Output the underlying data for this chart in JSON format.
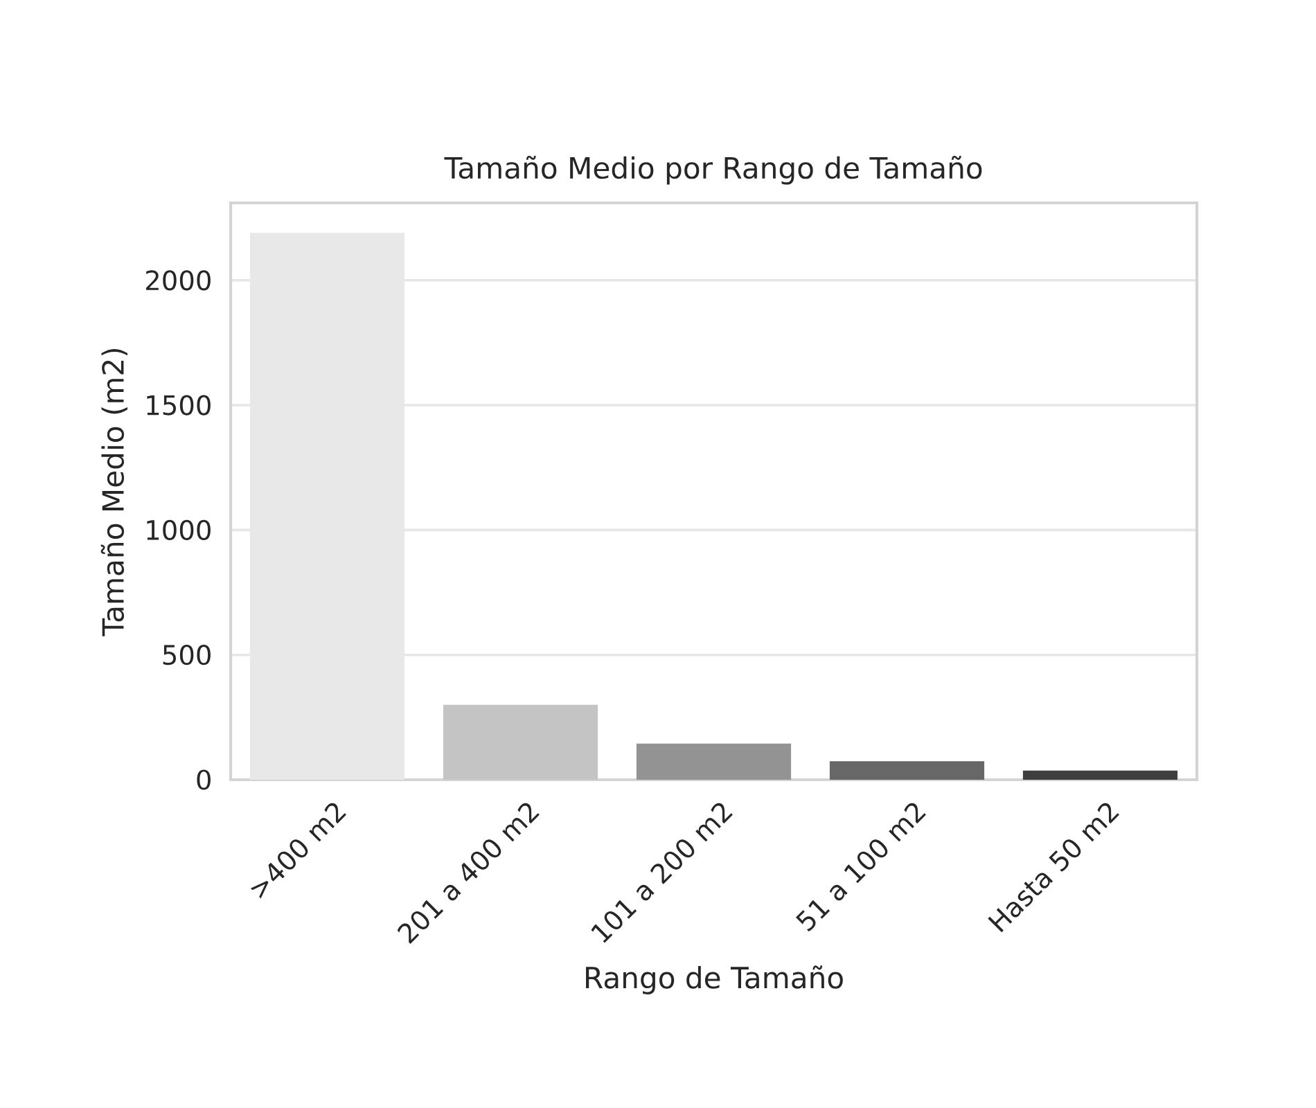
{
  "chart_data": {
    "type": "bar",
    "title": "Tamaño Medio por Rango de Tamaño",
    "xlabel": "Rango de Tamaño",
    "ylabel": "Tamaño Medio (m2)",
    "categories": [
      ">400 m2",
      "201 a 400 m2",
      "101 a 200 m2",
      "51 a 100 m2",
      "Hasta 50 m2"
    ],
    "values": [
      2190,
      300,
      145,
      74,
      37
    ],
    "colors": [
      "#e8e8e8",
      "#c4c4c4",
      "#939393",
      "#676767",
      "#3f3f3f"
    ],
    "ylim": [
      0,
      2310
    ],
    "yticks": [
      0,
      500,
      1000,
      1500,
      2000
    ],
    "grid": "y"
  }
}
